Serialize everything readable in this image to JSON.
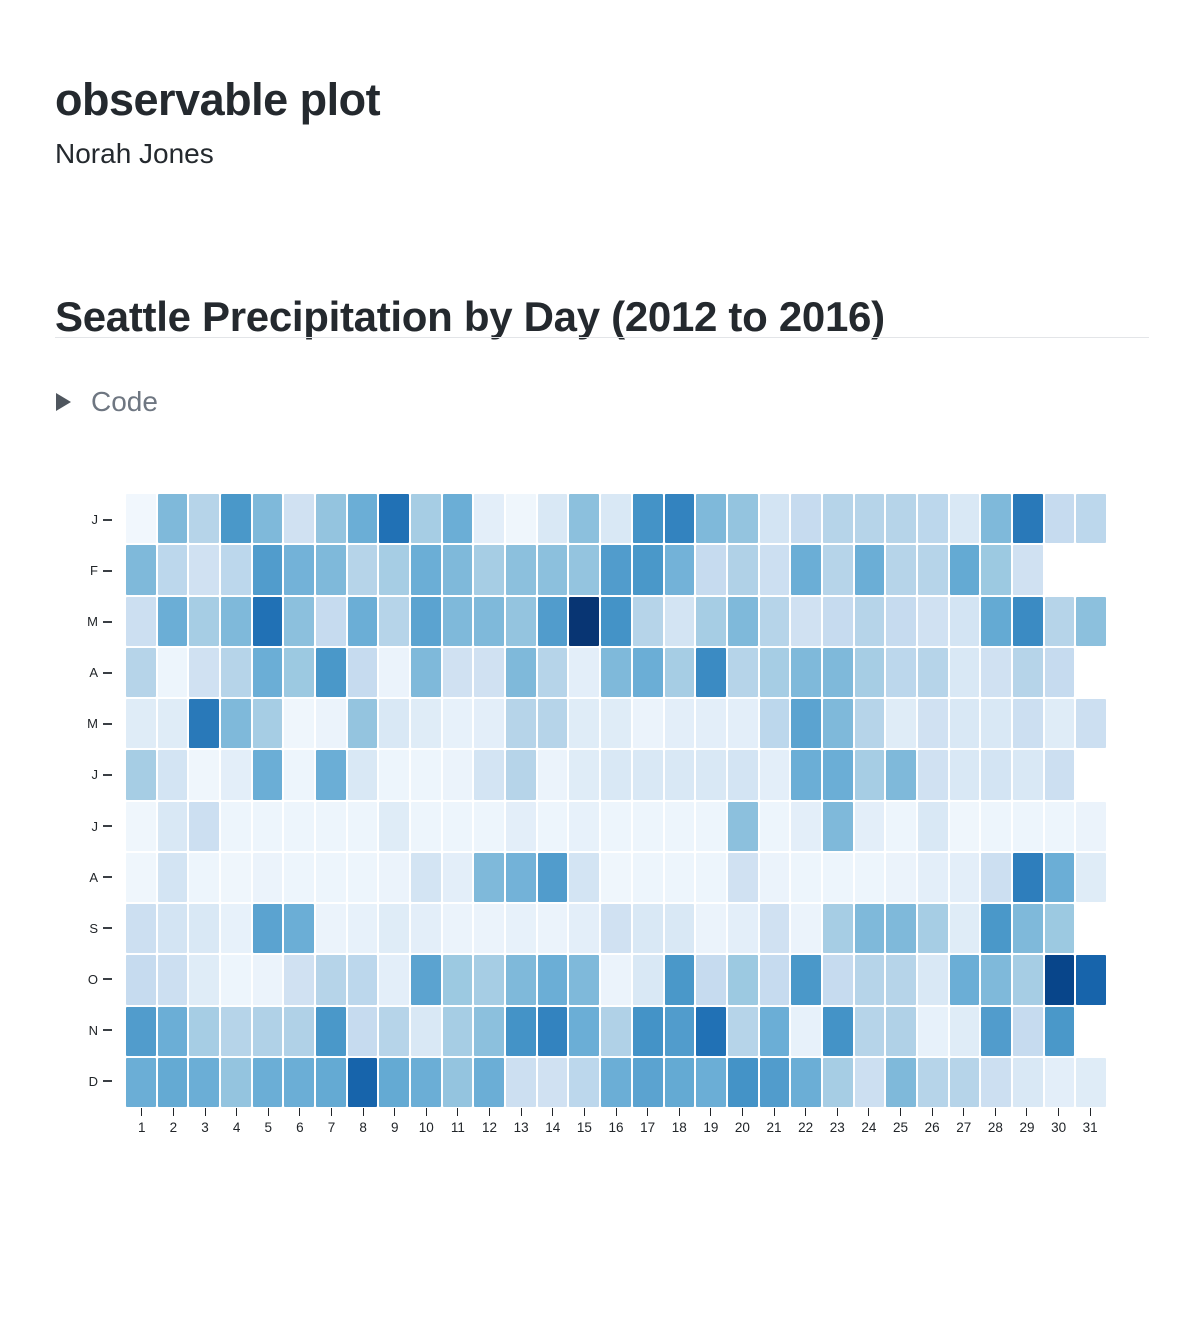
{
  "header": {
    "title": "observable plot",
    "author": "Norah Jones"
  },
  "section": {
    "heading": "Seattle Precipitation by Day (2012 to 2016)"
  },
  "code_toggle": {
    "label": "Code",
    "icon": "caret-right-icon"
  },
  "chart_data": {
    "type": "heatmap",
    "title": "Seattle Precipitation by Day (2012 to 2016)",
    "x_tick_labels": [
      1,
      2,
      3,
      4,
      5,
      6,
      7,
      8,
      9,
      10,
      11,
      12,
      13,
      14,
      15,
      16,
      17,
      18,
      19,
      20,
      21,
      22,
      23,
      24,
      25,
      26,
      27,
      28,
      29,
      30,
      31
    ],
    "y_tick_labels": [
      "J",
      "F",
      "M",
      "A",
      "M",
      "J",
      "J",
      "A",
      "S",
      "O",
      "N",
      "D"
    ],
    "value_meaning": "relative precipitation intensity, 0 (none) to 1 (max), mapped onto the Blues color scale",
    "color_scale": {
      "name": "Blues",
      "stops": [
        "#f7fbff",
        "#deebf7",
        "#c6dbef",
        "#9ecae1",
        "#6baed6",
        "#4292c6",
        "#2171b5",
        "#08519c",
        "#08306b"
      ]
    },
    "grid": false,
    "legend": "none",
    "months": [
      {
        "label": "J",
        "values": [
          0.03,
          0.45,
          0.3,
          0.6,
          0.45,
          0.2,
          0.4,
          0.5,
          0.75,
          0.35,
          0.5,
          0.1,
          0.04,
          0.15,
          0.42,
          0.15,
          0.62,
          0.68,
          0.45,
          0.4,
          0.18,
          0.25,
          0.3,
          0.3,
          0.3,
          0.28,
          0.15,
          0.45,
          0.72,
          0.25,
          0.28
        ]
      },
      {
        "label": "F",
        "values": [
          0.45,
          0.28,
          0.2,
          0.28,
          0.58,
          0.48,
          0.45,
          0.3,
          0.35,
          0.5,
          0.45,
          0.35,
          0.42,
          0.42,
          0.4,
          0.58,
          0.6,
          0.48,
          0.25,
          0.32,
          0.22,
          0.5,
          0.3,
          0.5,
          0.3,
          0.3,
          0.52,
          0.38,
          0.2
        ]
      },
      {
        "label": "M",
        "values": [
          0.22,
          0.5,
          0.35,
          0.45,
          0.75,
          0.42,
          0.25,
          0.5,
          0.3,
          0.55,
          0.45,
          0.45,
          0.4,
          0.58,
          0.98,
          0.62,
          0.3,
          0.18,
          0.35,
          0.45,
          0.3,
          0.2,
          0.25,
          0.3,
          0.25,
          0.2,
          0.18,
          0.52,
          0.65,
          0.3,
          0.42
        ]
      },
      {
        "label": "A",
        "values": [
          0.3,
          0.05,
          0.2,
          0.3,
          0.5,
          0.38,
          0.6,
          0.25,
          0.06,
          0.45,
          0.2,
          0.2,
          0.45,
          0.3,
          0.1,
          0.45,
          0.5,
          0.35,
          0.65,
          0.3,
          0.35,
          0.45,
          0.45,
          0.35,
          0.28,
          0.3,
          0.15,
          0.2,
          0.3,
          0.25
        ]
      },
      {
        "label": "M",
        "values": [
          0.12,
          0.12,
          0.72,
          0.45,
          0.35,
          0.04,
          0.06,
          0.4,
          0.15,
          0.12,
          0.08,
          0.1,
          0.3,
          0.3,
          0.12,
          0.12,
          0.06,
          0.1,
          0.1,
          0.1,
          0.28,
          0.55,
          0.45,
          0.3,
          0.12,
          0.2,
          0.15,
          0.15,
          0.22,
          0.12,
          0.22
        ]
      },
      {
        "label": "J",
        "values": [
          0.35,
          0.18,
          0.04,
          0.1,
          0.5,
          0.05,
          0.5,
          0.15,
          0.05,
          0.05,
          0.06,
          0.18,
          0.3,
          0.06,
          0.12,
          0.15,
          0.15,
          0.15,
          0.15,
          0.18,
          0.1,
          0.5,
          0.5,
          0.35,
          0.45,
          0.2,
          0.15,
          0.18,
          0.15,
          0.22
        ]
      },
      {
        "label": "J",
        "values": [
          0.04,
          0.15,
          0.22,
          0.05,
          0.05,
          0.05,
          0.05,
          0.05,
          0.12,
          0.05,
          0.05,
          0.05,
          0.1,
          0.05,
          0.08,
          0.05,
          0.05,
          0.05,
          0.05,
          0.42,
          0.05,
          0.1,
          0.45,
          0.1,
          0.05,
          0.15,
          0.04,
          0.05,
          0.05,
          0.05,
          0.06
        ]
      },
      {
        "label": "A",
        "values": [
          0.04,
          0.18,
          0.05,
          0.04,
          0.06,
          0.05,
          0.05,
          0.05,
          0.06,
          0.18,
          0.1,
          0.45,
          0.48,
          0.58,
          0.18,
          0.04,
          0.05,
          0.05,
          0.05,
          0.2,
          0.06,
          0.05,
          0.05,
          0.05,
          0.06,
          0.1,
          0.1,
          0.22,
          0.7,
          0.5,
          0.12
        ]
      },
      {
        "label": "S",
        "values": [
          0.22,
          0.18,
          0.15,
          0.08,
          0.55,
          0.5,
          0.06,
          0.08,
          0.12,
          0.1,
          0.06,
          0.06,
          0.08,
          0.06,
          0.1,
          0.2,
          0.15,
          0.15,
          0.06,
          0.1,
          0.2,
          0.06,
          0.35,
          0.45,
          0.45,
          0.35,
          0.12,
          0.6,
          0.45,
          0.38
        ]
      },
      {
        "label": "O",
        "values": [
          0.25,
          0.22,
          0.12,
          0.05,
          0.06,
          0.2,
          0.3,
          0.28,
          0.1,
          0.55,
          0.38,
          0.35,
          0.45,
          0.5,
          0.45,
          0.06,
          0.15,
          0.6,
          0.25,
          0.38,
          0.25,
          0.6,
          0.25,
          0.3,
          0.3,
          0.15,
          0.5,
          0.45,
          0.35,
          0.92,
          0.8
        ]
      },
      {
        "label": "N",
        "values": [
          0.58,
          0.5,
          0.35,
          0.3,
          0.32,
          0.32,
          0.6,
          0.25,
          0.3,
          0.15,
          0.35,
          0.42,
          0.62,
          0.68,
          0.5,
          0.32,
          0.62,
          0.58,
          0.75,
          0.3,
          0.5,
          0.08,
          0.62,
          0.3,
          0.32,
          0.08,
          0.12,
          0.58,
          0.25,
          0.6
        ]
      },
      {
        "label": "D",
        "values": [
          0.5,
          0.52,
          0.5,
          0.4,
          0.5,
          0.5,
          0.52,
          0.8,
          0.52,
          0.5,
          0.4,
          0.5,
          0.22,
          0.2,
          0.28,
          0.5,
          0.55,
          0.52,
          0.5,
          0.62,
          0.58,
          0.5,
          0.35,
          0.22,
          0.45,
          0.3,
          0.3,
          0.22,
          0.15,
          0.1,
          0.12
        ]
      }
    ]
  }
}
